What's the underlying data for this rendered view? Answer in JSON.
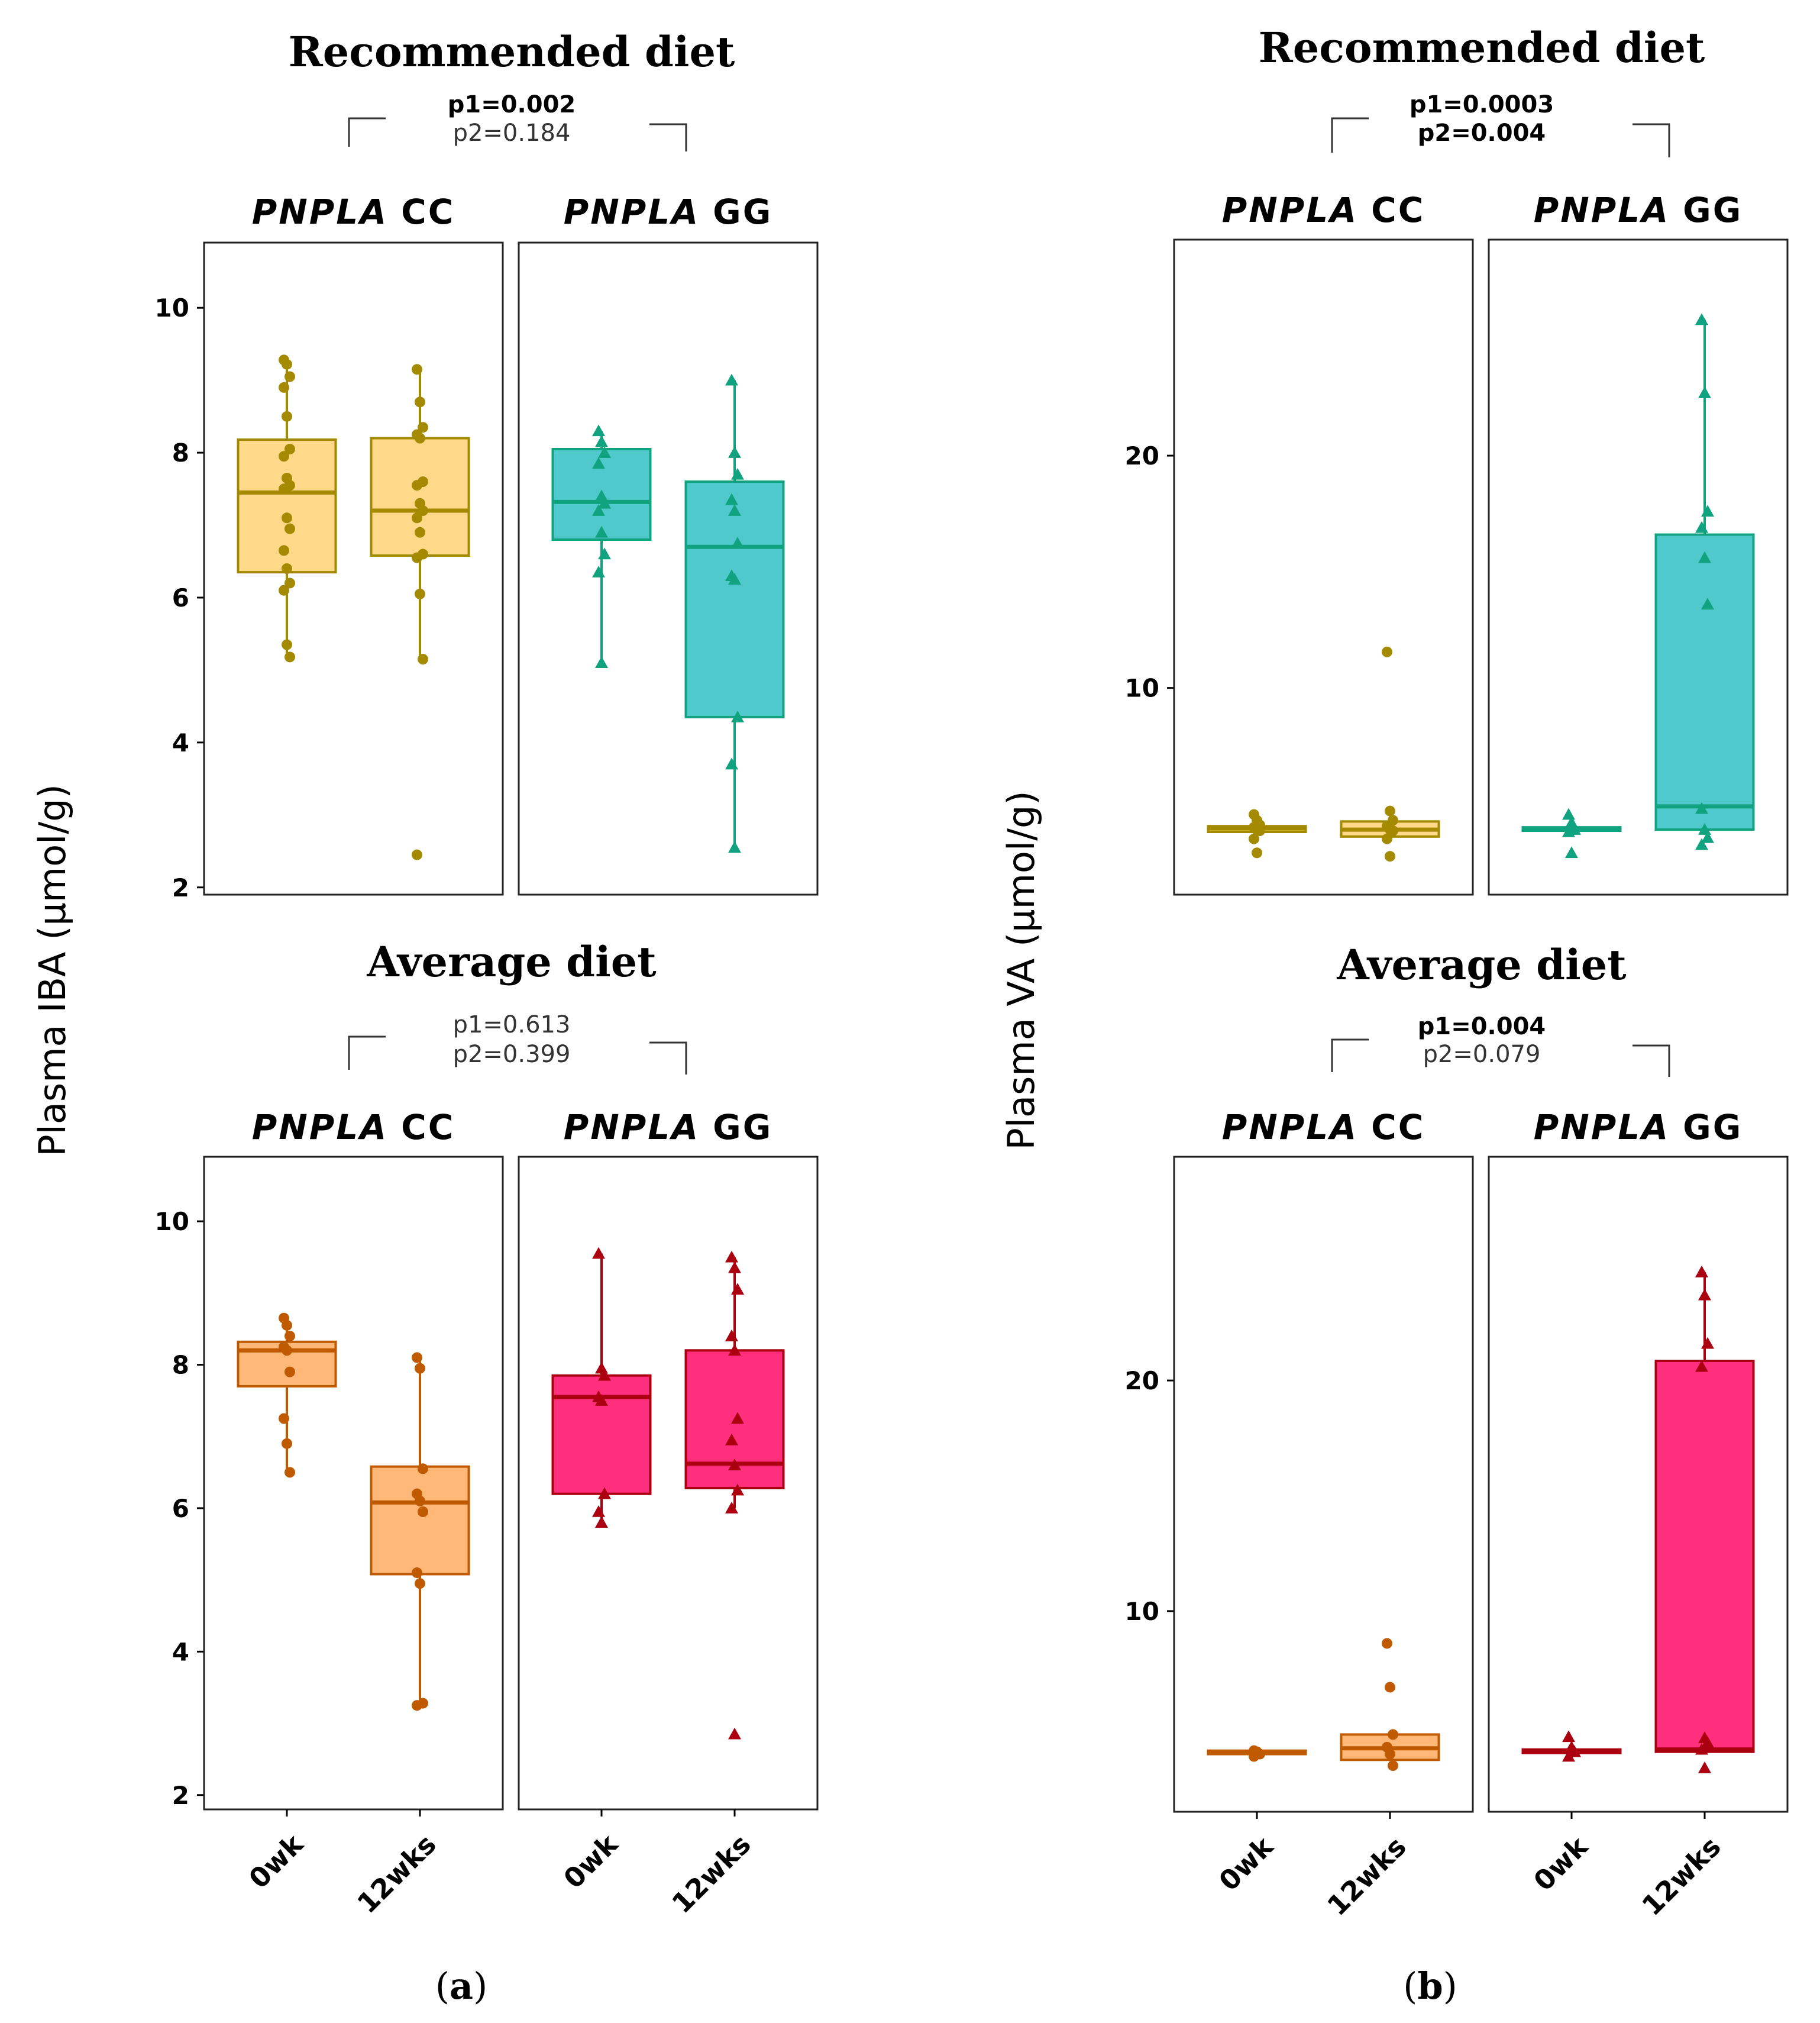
{
  "figure": {
    "panel_labels": [
      {
        "open": "(",
        "letter": "a",
        "close": ")"
      },
      {
        "open": "(",
        "letter": "b",
        "close": ")"
      }
    ]
  },
  "chart_data": [
    {
      "type": "box",
      "panel": "a",
      "ylabel": "Plasma  IBA (µmol/g)",
      "x_tick_labels": [
        "0wk",
        "12wks"
      ],
      "rows": [
        {
          "title": "Recommended diet",
          "pvalues": [
            {
              "text": "p1=0.002",
              "bold": true
            },
            {
              "text": "p2=0.184",
              "bold": false
            }
          ],
          "ylim": [
            1.9,
            10.9
          ],
          "yticks": [
            2,
            4,
            6,
            8,
            10
          ],
          "facets": [
            {
              "gene": "PNPLA",
              "genotype": "CC",
              "fill": "#FFD98A",
              "stroke": "#A38A00",
              "shape": "circle",
              "boxes": [
                {
                  "label": "0wk",
                  "q1": 6.35,
                  "median": 7.45,
                  "q3": 8.18,
                  "whisker_low": 5.15,
                  "whisker_high": 9.25,
                  "points": [
                    9.28,
                    9.22,
                    9.05,
                    8.9,
                    8.5,
                    8.05,
                    7.95,
                    7.65,
                    7.55,
                    7.5,
                    7.1,
                    6.95,
                    6.65,
                    6.4,
                    6.2,
                    6.1,
                    5.35,
                    5.18
                  ]
                },
                {
                  "label": "12wks",
                  "q1": 6.58,
                  "median": 7.2,
                  "q3": 8.2,
                  "whisker_low": 5.15,
                  "whisker_high": 9.15,
                  "points": [
                    9.15,
                    8.7,
                    8.35,
                    8.25,
                    8.2,
                    7.6,
                    7.55,
                    7.3,
                    7.2,
                    7.1,
                    6.9,
                    6.6,
                    6.55,
                    6.05,
                    5.15,
                    2.45
                  ]
                }
              ]
            },
            {
              "gene": "PNPLA",
              "genotype": "GG",
              "fill": "#4FC9CC",
              "stroke": "#11A37F",
              "shape": "triangle",
              "boxes": [
                {
                  "label": "0wk",
                  "q1": 6.8,
                  "median": 7.32,
                  "q3": 8.05,
                  "whisker_low": 5.1,
                  "whisker_high": 8.3,
                  "points": [
                    8.3,
                    8.15,
                    8.0,
                    7.85,
                    7.4,
                    7.3,
                    7.2,
                    6.9,
                    6.6,
                    6.35,
                    5.1
                  ]
                },
                {
                  "label": "12wks",
                  "q1": 4.35,
                  "median": 6.7,
                  "q3": 7.6,
                  "whisker_low": 2.55,
                  "whisker_high": 9.0,
                  "points": [
                    9.0,
                    8.0,
                    7.7,
                    7.35,
                    7.2,
                    6.75,
                    6.3,
                    6.25,
                    4.35,
                    3.7,
                    2.55
                  ]
                }
              ]
            }
          ]
        },
        {
          "title": "Average diet",
          "pvalues": [
            {
              "text": "p1=0.613",
              "bold": false
            },
            {
              "text": "p2=0.399",
              "bold": false
            }
          ],
          "ylim": [
            1.8,
            10.9
          ],
          "yticks": [
            2,
            4,
            6,
            8,
            10
          ],
          "facets": [
            {
              "gene": "PNPLA",
              "genotype": "CC",
              "fill": "#FFB878",
              "stroke": "#C05A00",
              "shape": "circle",
              "boxes": [
                {
                  "label": "0wk",
                  "q1": 7.7,
                  "median": 8.2,
                  "q3": 8.32,
                  "whisker_low": 6.5,
                  "whisker_high": 8.65,
                  "points": [
                    8.65,
                    8.55,
                    8.4,
                    8.25,
                    8.2,
                    7.9,
                    7.25,
                    6.9,
                    6.5
                  ]
                },
                {
                  "label": "12wks",
                  "q1": 5.08,
                  "median": 6.08,
                  "q3": 6.58,
                  "whisker_low": 3.28,
                  "whisker_high": 8.1,
                  "points": [
                    8.1,
                    7.95,
                    6.55,
                    6.2,
                    6.1,
                    5.95,
                    5.1,
                    4.95,
                    3.28,
                    3.25
                  ]
                }
              ]
            },
            {
              "gene": "PNPLA",
              "genotype": "GG",
              "fill": "#FF2F7D",
              "stroke": "#AA0010",
              "shape": "triangle",
              "boxes": [
                {
                  "label": "0wk",
                  "q1": 6.2,
                  "median": 7.55,
                  "q3": 7.85,
                  "whisker_low": 5.8,
                  "whisker_high": 9.55,
                  "points": [
                    9.55,
                    7.95,
                    7.85,
                    7.55,
                    7.5,
                    6.2,
                    5.95,
                    5.8
                  ]
                },
                {
                  "label": "12wks",
                  "q1": 6.28,
                  "median": 6.62,
                  "q3": 8.2,
                  "whisker_low": 6.0,
                  "whisker_high": 9.5,
                  "points": [
                    9.5,
                    9.35,
                    9.05,
                    8.4,
                    8.2,
                    7.25,
                    6.95,
                    6.6,
                    6.25,
                    6.0,
                    2.85
                  ]
                }
              ]
            }
          ]
        }
      ]
    },
    {
      "type": "box",
      "panel": "b",
      "ylabel": "Plasma  VA (µmol/g)",
      "x_tick_labels": [
        "0wk",
        "12wks"
      ],
      "rows": [
        {
          "title": "Recommended diet",
          "pvalues": [
            {
              "text": "p1=0.0003",
              "bold": true
            },
            {
              "text": "p2=0.004",
              "bold": true
            }
          ],
          "ylim": [
            1.1,
            29.3
          ],
          "yticks": [
            10,
            20
          ],
          "facets": [
            {
              "gene": "PNPLA",
              "genotype": "CC",
              "fill": "#FFD98A",
              "stroke": "#A38A00",
              "shape": "circle",
              "boxes": [
                {
                  "label": "0wk",
                  "q1": 3.8,
                  "median": 3.95,
                  "q3": 4.05,
                  "whisker_low": 3.8,
                  "whisker_high": 4.05,
                  "points": [
                    4.55,
                    4.3,
                    4.1,
                    4.0,
                    3.9,
                    3.85,
                    3.5,
                    2.9
                  ]
                },
                {
                  "label": "12wks",
                  "q1": 3.6,
                  "median": 3.9,
                  "q3": 4.25,
                  "whisker_low": 3.6,
                  "whisker_high": 4.25,
                  "points": [
                    11.55,
                    4.7,
                    4.3,
                    4.05,
                    3.9,
                    3.85,
                    3.5,
                    2.75
                  ]
                }
              ]
            },
            {
              "gene": "PNPLA",
              "genotype": "GG",
              "fill": "#4FC9CC",
              "stroke": "#11A37F",
              "shape": "triangle",
              "boxes": [
                {
                  "label": "0wk",
                  "q1": 3.85,
                  "median": 3.95,
                  "q3": 4.0,
                  "whisker_low": 3.85,
                  "whisker_high": 4.0,
                  "points": [
                    4.55,
                    4.2,
                    3.9,
                    3.8,
                    2.9
                  ]
                },
                {
                  "label": "12wks",
                  "q1": 3.9,
                  "median": 4.9,
                  "q3": 16.6,
                  "whisker_low": 3.9,
                  "whisker_high": 25.85,
                  "points": [
                    25.85,
                    22.7,
                    17.6,
                    16.9,
                    15.6,
                    13.6,
                    4.8,
                    3.9,
                    3.55,
                    3.25
                  ]
                }
              ]
            }
          ]
        },
        {
          "title": "Average diet",
          "pvalues": [
            {
              "text": "p1=0.004",
              "bold": true
            },
            {
              "text": "p2=0.079",
              "bold": false
            }
          ],
          "ylim": [
            1.3,
            29.7
          ],
          "yticks": [
            10,
            20
          ],
          "facets": [
            {
              "gene": "PNPLA",
              "genotype": "CC",
              "fill": "#FFB878",
              "stroke": "#C05A00",
              "shape": "circle",
              "boxes": [
                {
                  "label": "0wk",
                  "q1": 3.8,
                  "median": 3.88,
                  "q3": 3.95,
                  "whisker_low": 3.8,
                  "whisker_high": 3.95,
                  "points": [
                    3.95,
                    3.9,
                    3.8,
                    3.7
                  ]
                },
                {
                  "label": "12wks",
                  "q1": 3.55,
                  "median": 4.05,
                  "q3": 4.65,
                  "whisker_low": 3.55,
                  "whisker_high": 4.65,
                  "points": [
                    8.6,
                    6.7,
                    4.65,
                    4.1,
                    3.8,
                    3.3
                  ]
                }
              ]
            },
            {
              "gene": "PNPLA",
              "genotype": "GG",
              "fill": "#FF2F7D",
              "stroke": "#AA0010",
              "shape": "triangle",
              "boxes": [
                {
                  "label": "0wk",
                  "q1": 3.85,
                  "median": 3.95,
                  "q3": 4.0,
                  "whisker_low": 3.85,
                  "whisker_high": 4.0,
                  "points": [
                    4.55,
                    4.1,
                    3.9,
                    3.7
                  ]
                },
                {
                  "label": "12wks",
                  "q1": 3.9,
                  "median": 4.0,
                  "q3": 20.85,
                  "whisker_low": 3.9,
                  "whisker_high": 24.7,
                  "points": [
                    24.7,
                    23.7,
                    21.6,
                    20.6,
                    4.5,
                    4.3,
                    4.0,
                    3.2
                  ]
                }
              ]
            }
          ]
        }
      ]
    }
  ]
}
